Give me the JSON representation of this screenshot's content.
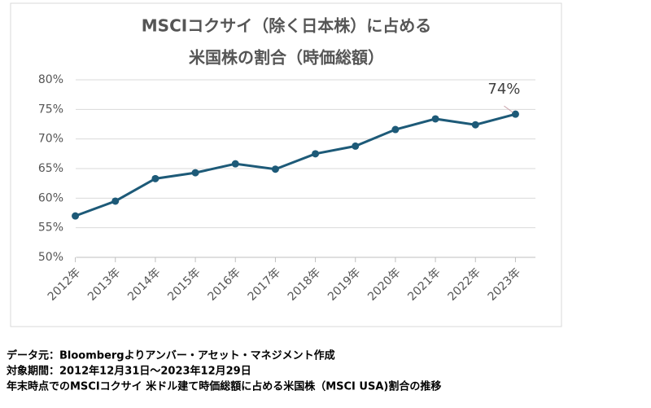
{
  "chart_data": {
    "type": "line",
    "title": [
      "MSCIコクサイ（除く日本株）に占める",
      "米国株の割合（時価総額）"
    ],
    "categories": [
      "2012年",
      "2013年",
      "2014年",
      "2015年",
      "2016年",
      "2017年",
      "2018年",
      "2019年",
      "2020年",
      "2021年",
      "2022年",
      "2023年"
    ],
    "series": [
      {
        "color": "#1d5a78",
        "values": [
          57.0,
          59.5,
          63.3,
          64.3,
          65.8,
          64.9,
          67.5,
          68.8,
          71.6,
          73.4,
          72.4,
          74.2
        ],
        "value_labels": [
          null,
          null,
          null,
          null,
          null,
          null,
          null,
          null,
          null,
          null,
          null,
          "74%"
        ]
      }
    ],
    "ylim": [
      50,
      80
    ],
    "yticks": [
      {
        "value": 50,
        "label": "50%"
      },
      {
        "value": 55,
        "label": "55%"
      },
      {
        "value": 60,
        "label": "60%"
      },
      {
        "value": 65,
        "label": "65%"
      },
      {
        "value": 70,
        "label": "70%"
      },
      {
        "value": 75,
        "label": "75%"
      },
      {
        "value": 80,
        "label": "80%"
      }
    ],
    "grid": true
  },
  "notes": [
    "データ元：Bloombergよりアンバー・アセット・マネジメント作成",
    "対象期間：2012年12月31日～2023年12月29日",
    "年末時点でのMSCIコクサイ 米ドル建て時価総額に占める米国株（MSCI USA)割合の推移"
  ]
}
